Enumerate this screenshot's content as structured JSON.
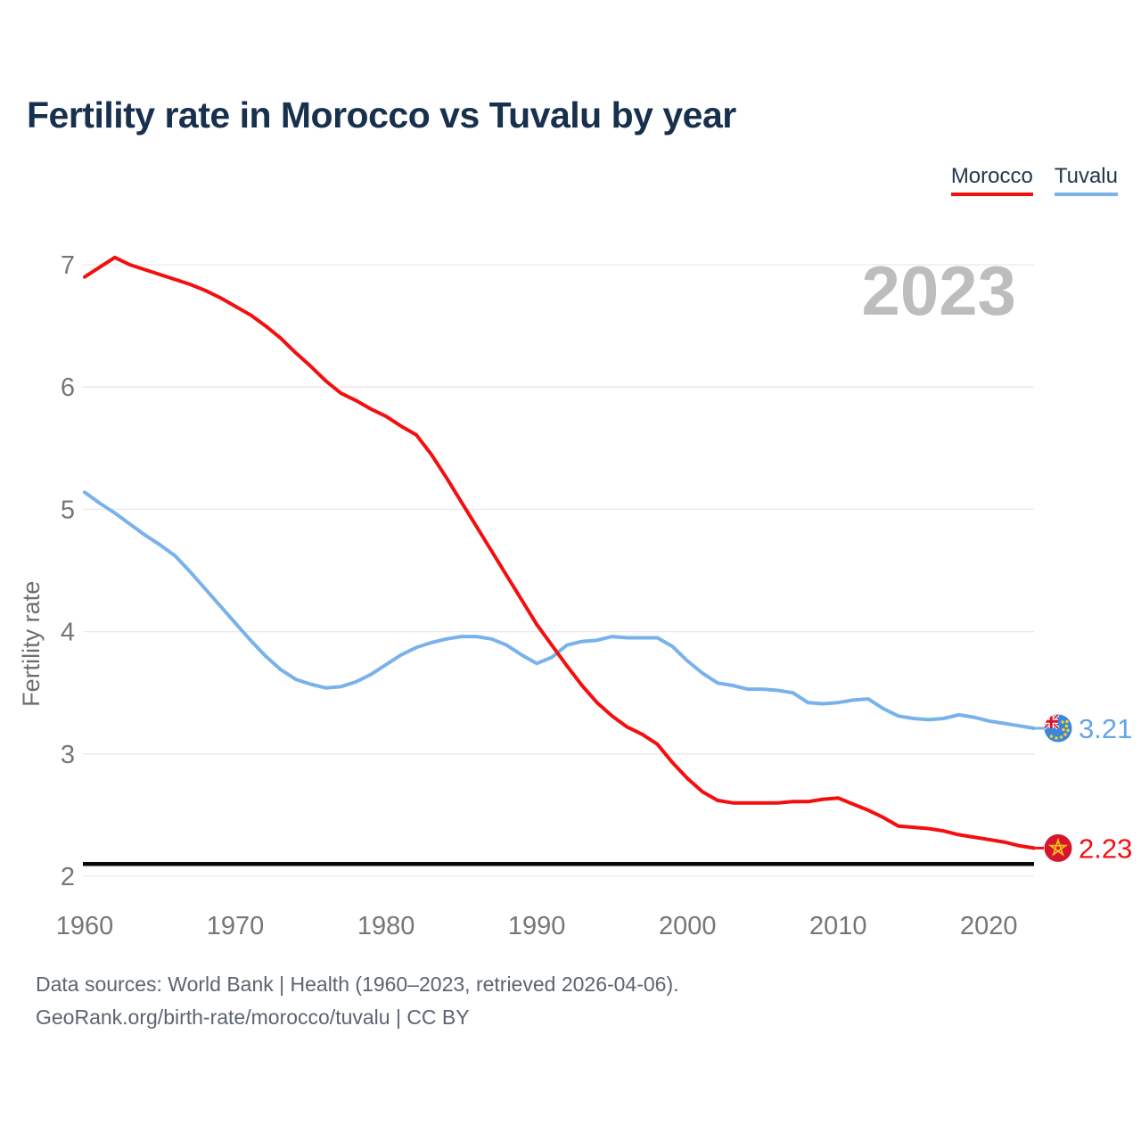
{
  "title": "Fertility rate in Morocco vs Tuvalu by year",
  "watermark": "2023",
  "legend": [
    {
      "label": "Morocco",
      "color": "#f40f0f"
    },
    {
      "label": "Tuvalu",
      "color": "#79b2ea"
    }
  ],
  "y_axis": {
    "label": "Fertility rate",
    "ticks": [
      2,
      3,
      4,
      5,
      6,
      7
    ]
  },
  "x_axis": {
    "ticks": [
      1960,
      1970,
      1980,
      1990,
      2000,
      2010,
      2020
    ]
  },
  "reference_line": {
    "value": 2.1
  },
  "end_labels": [
    {
      "series": "Tuvalu",
      "value": "3.21",
      "color": "#63a5e8"
    },
    {
      "series": "Morocco",
      "value": "2.23",
      "color": "#f40f0f"
    }
  ],
  "footer": {
    "line1": "Data sources: World Bank | Health (1960–2023, retrieved 2026-04-06).",
    "line2": "GeoRank.org/birth-rate/morocco/tuvalu | CC BY"
  },
  "colors": {
    "morocco": "#f40f0f",
    "tuvalu": "#79b2ea",
    "morocco_flag_bg": "#d8152f",
    "morocco_flag_star": "#f3c21a",
    "tuvalu_flag_bg": "#3e86db",
    "flag_union_navy": "#31549f",
    "flag_star_yellow": "#f6d21a",
    "grid": "#e9e9e9",
    "reference": "#0a0a0a",
    "watermark": "#bdbdbd",
    "axis_text": "#767676",
    "axis_title_text": "#6e6e6e"
  },
  "chart_data": {
    "type": "line",
    "title": "Fertility rate in Morocco vs Tuvalu by year",
    "xlabel": "",
    "ylabel": "Fertility rate",
    "xlim": [
      1960,
      2023
    ],
    "ylim": [
      2,
      7
    ],
    "grid": "horizontal",
    "legend_position": "top-right",
    "x": [
      1960,
      1961,
      1962,
      1963,
      1964,
      1965,
      1966,
      1967,
      1968,
      1969,
      1970,
      1971,
      1972,
      1973,
      1974,
      1975,
      1976,
      1977,
      1978,
      1979,
      1980,
      1981,
      1982,
      1983,
      1984,
      1985,
      1986,
      1987,
      1988,
      1989,
      1990,
      1991,
      1992,
      1993,
      1994,
      1995,
      1996,
      1997,
      1998,
      1999,
      2000,
      2001,
      2002,
      2003,
      2004,
      2005,
      2006,
      2007,
      2008,
      2009,
      2010,
      2011,
      2012,
      2013,
      2014,
      2015,
      2016,
      2017,
      2018,
      2019,
      2020,
      2021,
      2022,
      2023
    ],
    "series": [
      {
        "name": "Morocco",
        "color": "#f40f0f",
        "end_value": 2.23,
        "values": [
          6.9,
          6.98,
          7.06,
          7.0,
          6.96,
          6.92,
          6.88,
          6.84,
          6.79,
          6.73,
          6.66,
          6.59,
          6.5,
          6.4,
          6.28,
          6.17,
          6.05,
          5.95,
          5.89,
          5.82,
          5.76,
          5.68,
          5.61,
          5.45,
          5.26,
          5.06,
          4.86,
          4.66,
          4.46,
          4.26,
          4.06,
          3.89,
          3.72,
          3.56,
          3.42,
          3.31,
          3.22,
          3.16,
          3.08,
          2.93,
          2.8,
          2.69,
          2.62,
          2.6,
          2.6,
          2.6,
          2.6,
          2.61,
          2.61,
          2.63,
          2.64,
          2.59,
          2.54,
          2.48,
          2.41,
          2.4,
          2.39,
          2.37,
          2.34,
          2.32,
          2.3,
          2.28,
          2.25,
          2.23
        ]
      },
      {
        "name": "Tuvalu",
        "color": "#79b2ea",
        "end_value": 3.21,
        "values": [
          5.14,
          5.05,
          4.97,
          4.88,
          4.79,
          4.71,
          4.62,
          4.49,
          4.35,
          4.21,
          4.07,
          3.93,
          3.8,
          3.69,
          3.61,
          3.57,
          3.54,
          3.55,
          3.59,
          3.65,
          3.73,
          3.81,
          3.87,
          3.91,
          3.94,
          3.96,
          3.96,
          3.94,
          3.89,
          3.81,
          3.74,
          3.79,
          3.89,
          3.92,
          3.93,
          3.96,
          3.95,
          3.95,
          3.95,
          3.88,
          3.76,
          3.66,
          3.58,
          3.56,
          3.53,
          3.53,
          3.52,
          3.5,
          3.42,
          3.41,
          3.42,
          3.44,
          3.45,
          3.37,
          3.31,
          3.29,
          3.28,
          3.29,
          3.32,
          3.3,
          3.27,
          3.25,
          3.23,
          3.21
        ]
      }
    ]
  }
}
